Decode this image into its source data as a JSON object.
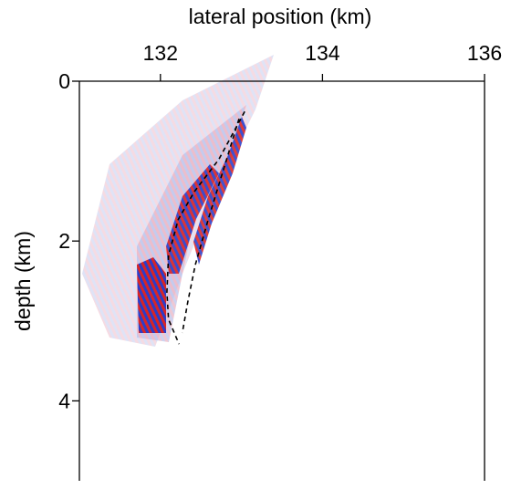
{
  "chart_data": {
    "type": "line",
    "xlabel": "lateral position (km)",
    "ylabel": "depth (km)",
    "xlim": [
      131,
      136
    ],
    "xticks": [
      132,
      134,
      136
    ],
    "ylim": [
      0,
      5
    ],
    "yticks": [
      0,
      2,
      4
    ],
    "y_inverted": true,
    "series": [
      {
        "color": "#000000",
        "x": [
          133.04,
          132.72,
          132.42,
          132.22,
          132.1,
          132.08,
          132.1,
          132.23
        ],
        "values": [
          0.38,
          0.98,
          1.38,
          1.73,
          2.18,
          2.64,
          2.98,
          3.29
        ]
      },
      {
        "color": "#000000",
        "x": [
          132.97,
          132.78,
          132.59,
          132.43,
          132.34,
          132.27
        ],
        "values": [
          0.47,
          1.1,
          1.73,
          2.3,
          2.75,
          3.15
        ]
      }
    ]
  }
}
